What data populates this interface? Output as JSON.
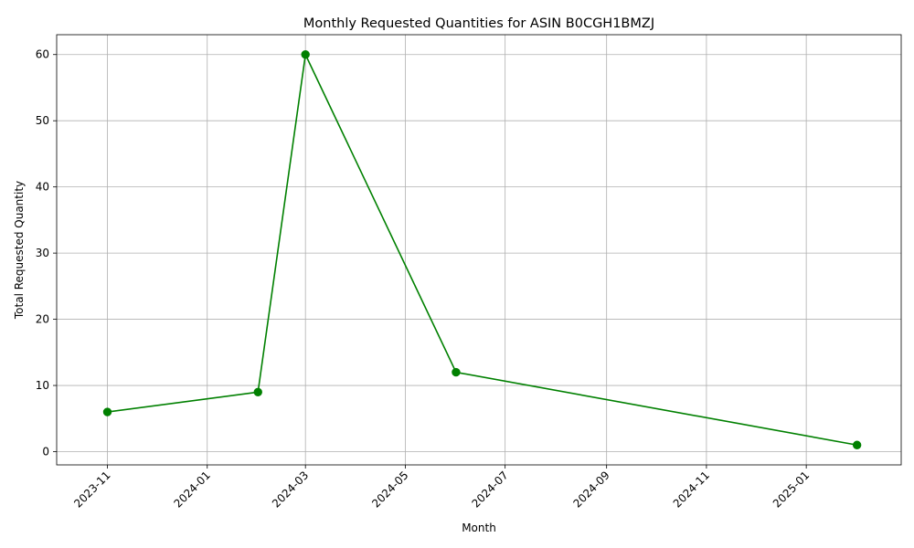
{
  "chart_data": {
    "type": "line",
    "title": "Monthly Requested Quantities for ASIN B0CGH1BMZJ",
    "xlabel": "Month",
    "ylabel": "Total Requested Quantity",
    "x_ticks": [
      "2023-11",
      "2024-01",
      "2024-03",
      "2024-05",
      "2024-07",
      "2024-09",
      "2024-11",
      "2025-01"
    ],
    "y_ticks": [
      0,
      10,
      20,
      30,
      40,
      50,
      60
    ],
    "ylim": [
      -2,
      63
    ],
    "xlim": [
      "2023-10-01",
      "2025-02-28"
    ],
    "grid": true,
    "series": [
      {
        "color": "#008000",
        "marker": "circle",
        "points": [
          {
            "x": "2023-11-01",
            "y": 6
          },
          {
            "x": "2024-02-01",
            "y": 9
          },
          {
            "x": "2024-03-01",
            "y": 60
          },
          {
            "x": "2024-06-01",
            "y": 12
          },
          {
            "x": "2025-02-01",
            "y": 1
          }
        ]
      }
    ]
  }
}
